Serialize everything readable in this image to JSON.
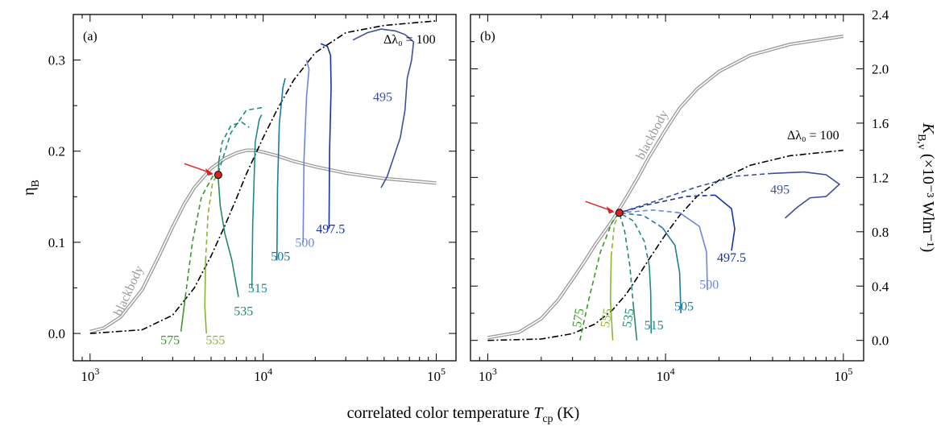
{
  "xlabel": "correlated color temperature T_cp (K)",
  "xlabel_parts": {
    "main": "correlated color temperature ",
    "italic": "T",
    "sub": "cp",
    "unit": " (K)"
  },
  "chart_data": [
    {
      "type": "line",
      "panel": "(a)",
      "x_scale": "log",
      "xlim": [
        800,
        130000
      ],
      "x_ticks": [
        1000,
        10000,
        100000
      ],
      "x_tick_labels": [
        [
          "10",
          "3"
        ],
        [
          "10",
          "4"
        ],
        [
          "10",
          "5"
        ]
      ],
      "ylim": [
        -0.03,
        0.35
      ],
      "y_ticks": [
        0.0,
        0.1,
        0.2,
        0.3
      ],
      "y_tick_labels": [
        "0.0",
        "0.1",
        "0.2",
        "0.3"
      ],
      "ylabel": {
        "main": "η",
        "sub": "B"
      },
      "dotdash_label": "Δλ₀ = 100",
      "marker": {
        "x": 5500,
        "y": 0.174
      },
      "series": [
        {
          "name": "blackbody",
          "color": "#9a9a9a",
          "style": "double",
          "label_at": [
            1750,
            0.045
          ],
          "label_rotate": -65,
          "x": [
            1000,
            1200,
            1500,
            2000,
            2500,
            3000,
            3500,
            4000,
            5000,
            6000,
            7000,
            8000,
            9000,
            10000,
            12000,
            15000,
            20000,
            30000,
            50000,
            100000
          ],
          "y": [
            0.002,
            0.006,
            0.018,
            0.048,
            0.085,
            0.117,
            0.142,
            0.16,
            0.181,
            0.192,
            0.198,
            0.201,
            0.201,
            0.199,
            0.195,
            0.189,
            0.183,
            0.176,
            0.17,
            0.165
          ]
        },
        {
          "name": "dotdash",
          "color": "#000000",
          "style": "dashdot",
          "x": [
            1000,
            2000,
            3000,
            4000,
            5000,
            6000,
            7000,
            8000,
            10000,
            12000,
            15000,
            20000,
            30000,
            50000,
            100000
          ],
          "y": [
            0.0,
            0.004,
            0.02,
            0.05,
            0.085,
            0.118,
            0.148,
            0.175,
            0.215,
            0.245,
            0.278,
            0.308,
            0.33,
            0.338,
            0.343
          ]
        },
        {
          "name": "575",
          "color": "#3a9a2a",
          "label_at": [
            2900,
            -0.012
          ],
          "x": [
            3350,
            3550,
            3900,
            4400,
            5100,
            5500
          ],
          "y": [
            0.002,
            0.04,
            0.1,
            0.15,
            0.172,
            0.176
          ],
          "dash_from": 1
        },
        {
          "name": "555",
          "color": "#8ab530",
          "label_at": [
            5300,
            -0.012
          ],
          "x": [
            4700,
            4600,
            4650,
            4800,
            5100,
            5500
          ],
          "y": [
            0.0,
            0.03,
            0.08,
            0.13,
            0.165,
            0.176
          ],
          "dash_from": 2
        },
        {
          "name": "535",
          "color": "#238a6b",
          "label_at": [
            7700,
            0.02
          ],
          "x": [
            7200,
            6600,
            6000,
            5650,
            5500,
            5550,
            5800,
            6500,
            7500,
            8300
          ],
          "y": [
            0.04,
            0.08,
            0.11,
            0.14,
            0.17,
            0.19,
            0.21,
            0.228,
            0.232,
            0.226
          ],
          "dash_from": 5
        },
        {
          "name": "515",
          "color": "#1f8a8a",
          "label_at": [
            9300,
            0.045
          ],
          "x": [
            8600,
            8700,
            8900,
            9000,
            9500,
            9800,
            5500,
            6500,
            8000,
            10000
          ],
          "y": [
            0.05,
            0.12,
            0.18,
            0.21,
            0.235,
            0.24,
            0.176,
            0.22,
            0.245,
            0.248
          ],
          "dash_from": -1,
          "path": "custom515"
        },
        {
          "name": "505",
          "color": "#1e7ba0",
          "label_at": [
            12600,
            0.08
          ],
          "x": [
            12000,
            12100,
            12400,
            13000,
            13400
          ],
          "y": [
            0.08,
            0.16,
            0.23,
            0.27,
            0.28
          ]
        },
        {
          "name": "500",
          "color": "#6d86e0",
          "label_at": [
            17400,
            0.095
          ],
          "x": [
            17000,
            17200,
            17800,
            18400,
            17800
          ],
          "y": [
            0.1,
            0.19,
            0.26,
            0.29,
            0.3
          ]
        },
        {
          "name": "497.5",
          "color": "#1733a8",
          "label_at": [
            24500,
            0.11
          ],
          "x": [
            24000,
            24200,
            24700,
            24500,
            23500,
            21500
          ],
          "y": [
            0.115,
            0.2,
            0.27,
            0.305,
            0.315,
            0.318
          ]
        },
        {
          "name": "495",
          "color": "#3f4f9a",
          "label_at": [
            49000,
            0.255
          ],
          "x": [
            48000,
            52000,
            56000,
            62000,
            66000,
            68000,
            72000,
            74000,
            66000,
            58000,
            48000,
            40000,
            33000
          ],
          "y": [
            0.16,
            0.172,
            0.19,
            0.215,
            0.245,
            0.28,
            0.3,
            0.32,
            0.328,
            0.332,
            0.334,
            0.33,
            0.322
          ]
        }
      ]
    },
    {
      "type": "line",
      "panel": "(b)",
      "x_scale": "log",
      "xlim": [
        800,
        130000
      ],
      "x_ticks": [
        1000,
        10000,
        100000
      ],
      "x_tick_labels": [
        [
          "10",
          "3"
        ],
        [
          "10",
          "4"
        ],
        [
          "10",
          "5"
        ]
      ],
      "ylim": [
        -0.15,
        2.4
      ],
      "y_ticks": [
        0.0,
        0.4,
        0.8,
        1.2,
        1.6,
        2.0,
        2.4
      ],
      "y_tick_labels": [
        "0.0",
        "0.4",
        "0.8",
        "1.2",
        "1.6",
        "2.0",
        "2.4"
      ],
      "ylabel": {
        "italic": "K",
        "sub": "B,v",
        "rest": " (×10⁻³ Wlm⁻¹)"
      },
      "dotdash_label": "Δλ₀ = 100",
      "marker": {
        "x": 5500,
        "y": 0.94
      },
      "series": [
        {
          "name": "blackbody",
          "color": "#9a9a9a",
          "style": "double",
          "label_at": [
            8800,
            1.5
          ],
          "label_rotate": -62,
          "x": [
            1000,
            1500,
            2000,
            2500,
            3000,
            3500,
            4000,
            5000,
            6000,
            7000,
            8000,
            10000,
            12000,
            15000,
            20000,
            30000,
            50000,
            100000
          ],
          "y": [
            0.02,
            0.06,
            0.16,
            0.3,
            0.45,
            0.58,
            0.7,
            0.88,
            1.05,
            1.2,
            1.34,
            1.55,
            1.71,
            1.85,
            1.98,
            2.1,
            2.18,
            2.24
          ]
        },
        {
          "name": "dotdash",
          "color": "#000000",
          "style": "dashdot",
          "x": [
            1000,
            2000,
            3000,
            4000,
            5000,
            6000,
            7000,
            8000,
            10000,
            12000,
            15000,
            20000,
            30000,
            50000,
            100000
          ],
          "y": [
            0.0,
            0.01,
            0.05,
            0.12,
            0.22,
            0.34,
            0.47,
            0.59,
            0.78,
            0.92,
            1.06,
            1.18,
            1.29,
            1.36,
            1.4
          ]
        },
        {
          "name": "575",
          "color": "#3a9a2a",
          "label_at": [
            3400,
            0.16
          ],
          "label_rotate": -80,
          "x": [
            3300,
            3700,
            4300,
            5000,
            5500
          ],
          "y": [
            0.0,
            0.3,
            0.65,
            0.87,
            0.94
          ],
          "dash_from": 0
        },
        {
          "name": "555",
          "color": "#8ab530",
          "label_at": [
            4900,
            0.16
          ],
          "label_rotate": -80,
          "x": [
            5050,
            4900,
            4950,
            5150,
            5500
          ],
          "y": [
            0.0,
            0.3,
            0.62,
            0.85,
            0.94
          ],
          "dash_from": 2
        },
        {
          "name": "535",
          "color": "#238a6b",
          "label_at": [
            6500,
            0.16
          ],
          "label_rotate": -80,
          "x": [
            6900,
            6600,
            6300,
            5900,
            5500
          ],
          "y": [
            0.0,
            0.25,
            0.55,
            0.8,
            0.94
          ],
          "dash_from": 1
        },
        {
          "name": "515",
          "color": "#1f8a8a",
          "label_at": [
            8600,
            0.08
          ],
          "x": [
            8300,
            8250,
            8100,
            7600,
            6600,
            5500
          ],
          "y": [
            0.05,
            0.35,
            0.55,
            0.73,
            0.88,
            0.94
          ],
          "dash_from": 2
        },
        {
          "name": "505",
          "color": "#1e7ba0",
          "label_at": [
            12700,
            0.22
          ],
          "x": [
            12200,
            12000,
            11300,
            9600,
            7500,
            5500
          ],
          "y": [
            0.2,
            0.5,
            0.7,
            0.83,
            0.92,
            0.94
          ],
          "dash_from": 3
        },
        {
          "name": "500",
          "color": "#6d86e0",
          "label_at": [
            17600,
            0.38
          ],
          "x": [
            17200,
            17000,
            15500,
            12000,
            8500,
            5500
          ],
          "y": [
            0.37,
            0.65,
            0.84,
            0.94,
            0.96,
            0.94
          ],
          "dash_from": 3
        },
        {
          "name": "497.5",
          "color": "#1733a8",
          "label_at": [
            23500,
            0.58
          ],
          "x": [
            23500,
            24500,
            23500,
            19000,
            13000,
            8000,
            5500
          ],
          "y": [
            0.66,
            0.82,
            0.97,
            1.07,
            1.06,
            1.0,
            0.94
          ],
          "dash_from": 3
        },
        {
          "name": "495",
          "color": "#3f4f9a",
          "label_at": [
            44000,
            1.08
          ],
          "x": [
            47000,
            55000,
            65000,
            80000,
            95000,
            80000,
            60000,
            40000,
            25000,
            15000,
            8500,
            5500
          ],
          "y": [
            0.9,
            0.98,
            1.05,
            1.06,
            1.15,
            1.22,
            1.24,
            1.23,
            1.21,
            1.13,
            1.02,
            0.94
          ],
          "dash_from": 7
        }
      ]
    }
  ]
}
